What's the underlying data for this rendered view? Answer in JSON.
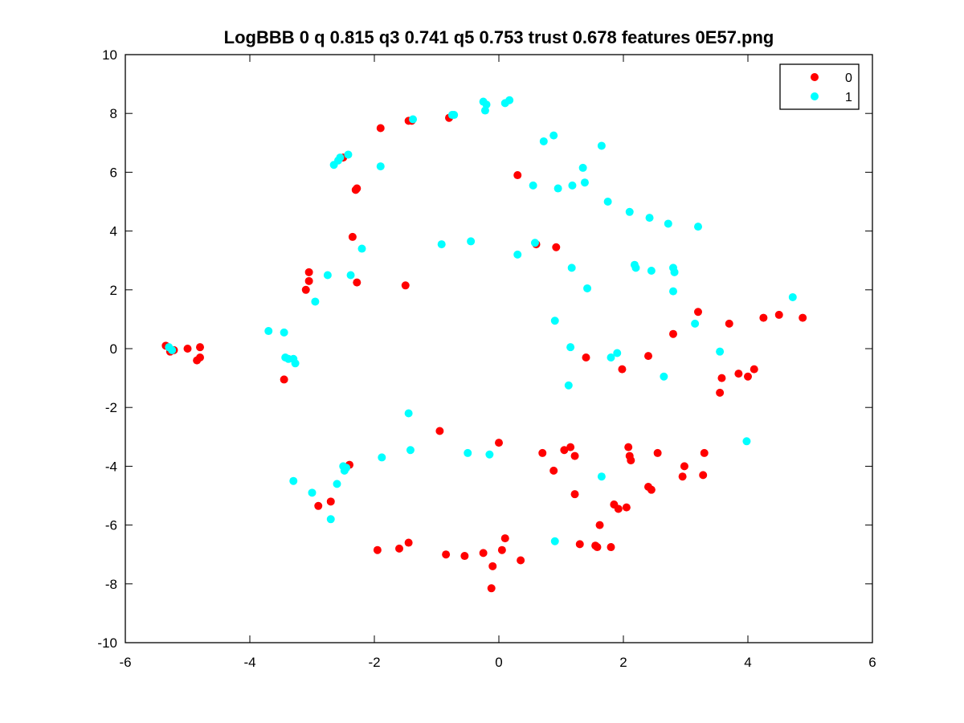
{
  "chart_data": {
    "type": "scatter",
    "title": "LogBBB 0 q 0.815 q3 0.741 q5 0.753 trust 0.678 features 0E57.png",
    "xlabel": "",
    "ylabel": "",
    "xlim": [
      -6,
      6
    ],
    "ylim": [
      -10,
      10
    ],
    "x_ticks": [
      -6,
      -4,
      -2,
      0,
      2,
      4,
      6
    ],
    "y_ticks": [
      -10,
      -8,
      -6,
      -4,
      -2,
      0,
      2,
      4,
      6,
      8,
      10
    ],
    "grid": false,
    "legend_position": "top-right",
    "series": [
      {
        "name": "0",
        "color": "#ff0000",
        "points": [
          [
            -5.35,
            0.1
          ],
          [
            -5.28,
            -0.1
          ],
          [
            -5.22,
            -0.05
          ],
          [
            -5.0,
            0.0
          ],
          [
            -4.8,
            0.05
          ],
          [
            -4.8,
            -0.3
          ],
          [
            -4.85,
            -0.4
          ],
          [
            -3.45,
            -1.05
          ],
          [
            -3.1,
            2.0
          ],
          [
            -3.05,
            2.6
          ],
          [
            -3.05,
            2.3
          ],
          [
            -2.9,
            -5.35
          ],
          [
            -2.7,
            -5.2
          ],
          [
            -2.5,
            6.5
          ],
          [
            -2.35,
            3.8
          ],
          [
            -2.3,
            5.4
          ],
          [
            -2.28,
            5.45
          ],
          [
            -2.28,
            2.25
          ],
          [
            -2.4,
            -3.95
          ],
          [
            -1.9,
            7.5
          ],
          [
            -1.5,
            2.15
          ],
          [
            -1.45,
            7.75
          ],
          [
            -1.4,
            7.75
          ],
          [
            -1.95,
            -6.85
          ],
          [
            -1.6,
            -6.8
          ],
          [
            -1.45,
            -6.6
          ],
          [
            -0.95,
            -2.8
          ],
          [
            -0.85,
            -7.0
          ],
          [
            -0.8,
            7.85
          ],
          [
            -0.55,
            -7.05
          ],
          [
            -0.25,
            -6.95
          ],
          [
            -0.1,
            -7.4
          ],
          [
            -0.12,
            -8.15
          ],
          [
            0.0,
            -3.2
          ],
          [
            0.05,
            -6.85
          ],
          [
            0.1,
            -6.45
          ],
          [
            0.35,
            -7.2
          ],
          [
            0.3,
            5.9
          ],
          [
            0.6,
            3.55
          ],
          [
            0.92,
            3.45
          ],
          [
            0.7,
            -3.55
          ],
          [
            0.88,
            -4.15
          ],
          [
            1.05,
            -3.45
          ],
          [
            1.15,
            -3.35
          ],
          [
            1.22,
            -3.65
          ],
          [
            1.22,
            -4.95
          ],
          [
            1.3,
            -6.65
          ],
          [
            1.4,
            -0.3
          ],
          [
            1.55,
            -6.7
          ],
          [
            1.58,
            -6.75
          ],
          [
            1.62,
            -6.0
          ],
          [
            1.8,
            -6.75
          ],
          [
            1.85,
            -5.3
          ],
          [
            1.92,
            -5.45
          ],
          [
            1.98,
            -0.7
          ],
          [
            2.05,
            -5.4
          ],
          [
            2.08,
            -3.35
          ],
          [
            2.1,
            -3.65
          ],
          [
            2.12,
            -3.8
          ],
          [
            2.4,
            -0.25
          ],
          [
            2.4,
            -4.7
          ],
          [
            2.45,
            -4.8
          ],
          [
            2.55,
            -3.55
          ],
          [
            2.8,
            0.5
          ],
          [
            2.95,
            -4.35
          ],
          [
            2.98,
            -4.0
          ],
          [
            3.2,
            1.25
          ],
          [
            3.28,
            -4.3
          ],
          [
            3.3,
            -3.55
          ],
          [
            3.55,
            -1.5
          ],
          [
            3.58,
            -1.0
          ],
          [
            3.7,
            0.85
          ],
          [
            3.85,
            -0.85
          ],
          [
            4.0,
            -0.95
          ],
          [
            4.1,
            -0.7
          ],
          [
            4.25,
            1.05
          ],
          [
            4.5,
            1.15
          ],
          [
            4.88,
            1.05
          ]
        ]
      },
      {
        "name": "1",
        "color": "#00ffff",
        "points": [
          [
            -5.3,
            0.05
          ],
          [
            -5.25,
            -0.05
          ],
          [
            -3.7,
            0.6
          ],
          [
            -3.45,
            0.55
          ],
          [
            -3.43,
            -0.3
          ],
          [
            -3.38,
            -0.35
          ],
          [
            -3.3,
            -0.35
          ],
          [
            -3.27,
            -0.5
          ],
          [
            -3.3,
            -4.5
          ],
          [
            -3.0,
            -4.9
          ],
          [
            -2.95,
            1.6
          ],
          [
            -2.75,
            2.5
          ],
          [
            -2.7,
            -5.8
          ],
          [
            -2.65,
            6.25
          ],
          [
            -2.6,
            -4.6
          ],
          [
            -2.58,
            6.4
          ],
          [
            -2.55,
            6.5
          ],
          [
            -2.42,
            6.6
          ],
          [
            -2.5,
            -4.0
          ],
          [
            -2.48,
            -4.15
          ],
          [
            -2.45,
            -4.05
          ],
          [
            -2.38,
            2.5
          ],
          [
            -2.2,
            3.4
          ],
          [
            -1.9,
            6.2
          ],
          [
            -1.88,
            -3.7
          ],
          [
            -1.45,
            -2.2
          ],
          [
            -1.42,
            -3.45
          ],
          [
            -1.38,
            7.8
          ],
          [
            -0.92,
            3.55
          ],
          [
            -0.75,
            7.95
          ],
          [
            -0.72,
            7.95
          ],
          [
            -0.45,
            3.65
          ],
          [
            -0.5,
            -3.55
          ],
          [
            -0.25,
            8.4
          ],
          [
            -0.2,
            8.3
          ],
          [
            -0.22,
            8.1
          ],
          [
            -0.15,
            -3.6
          ],
          [
            0.1,
            8.35
          ],
          [
            0.17,
            8.45
          ],
          [
            0.3,
            3.2
          ],
          [
            0.55,
            5.55
          ],
          [
            0.58,
            3.6
          ],
          [
            0.72,
            7.05
          ],
          [
            0.88,
            7.25
          ],
          [
            0.9,
            0.95
          ],
          [
            0.9,
            -6.55
          ],
          [
            0.95,
            5.45
          ],
          [
            1.12,
            -1.25
          ],
          [
            1.15,
            0.05
          ],
          [
            1.18,
            5.55
          ],
          [
            1.17,
            2.75
          ],
          [
            1.35,
            6.15
          ],
          [
            1.38,
            5.65
          ],
          [
            1.42,
            2.05
          ],
          [
            1.65,
            6.9
          ],
          [
            1.65,
            -4.35
          ],
          [
            1.75,
            5.0
          ],
          [
            1.8,
            -0.3
          ],
          [
            1.9,
            -0.15
          ],
          [
            2.1,
            4.65
          ],
          [
            2.18,
            2.85
          ],
          [
            2.2,
            2.75
          ],
          [
            2.42,
            4.45
          ],
          [
            2.45,
            2.65
          ],
          [
            2.65,
            -0.95
          ],
          [
            2.72,
            4.25
          ],
          [
            2.8,
            2.75
          ],
          [
            2.82,
            2.6
          ],
          [
            2.8,
            1.95
          ],
          [
            3.15,
            0.85
          ],
          [
            3.2,
            4.15
          ],
          [
            3.55,
            -0.1
          ],
          [
            3.98,
            -3.15
          ],
          [
            4.72,
            1.75
          ]
        ]
      }
    ]
  }
}
